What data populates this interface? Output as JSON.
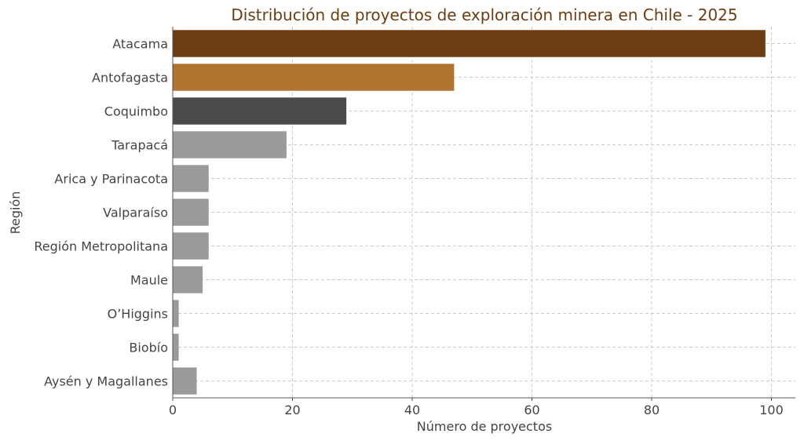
{
  "chart_data": {
    "type": "bar",
    "orientation": "horizontal",
    "title": "Distribución de proyectos de exploración minera en Chile - 2025",
    "xlabel": "Número de proyectos",
    "ylabel": "Región",
    "xlim": [
      0,
      104
    ],
    "xticks": [
      0,
      20,
      40,
      60,
      80,
      100
    ],
    "grid": true,
    "categories": [
      "Atacama",
      "Antofagasta",
      "Coquimbo",
      "Tarapacá",
      "Arica y Parinacota",
      "Valparaíso",
      "Región Metropolitana",
      "Maule",
      "O’Higgins",
      "Biobío",
      "Aysén y Magallanes"
    ],
    "values": [
      99,
      47,
      29,
      19,
      6,
      6,
      6,
      5,
      1,
      1,
      4
    ],
    "colors": [
      "#6b3d12",
      "#b07330",
      "#4a4a4a",
      "#9a9a9a",
      "#9a9a9a",
      "#9a9a9a",
      "#9a9a9a",
      "#9a9a9a",
      "#9a9a9a",
      "#9a9a9a",
      "#9a9a9a"
    ],
    "title_color": "#6b3d12"
  }
}
